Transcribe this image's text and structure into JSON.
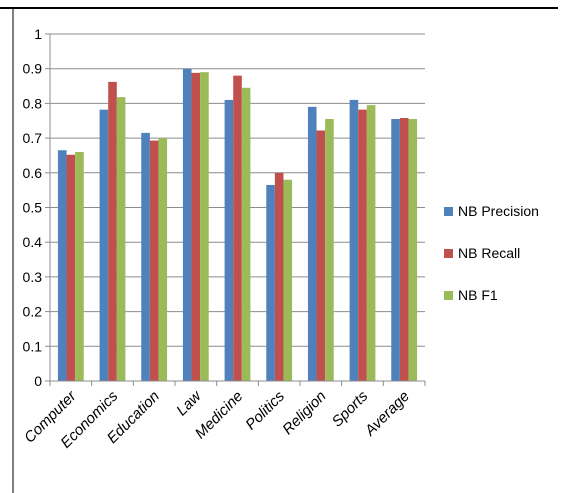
{
  "chart_data": {
    "type": "bar",
    "categories": [
      "Computer",
      "Economics",
      "Education",
      "Law",
      "Medicine",
      "Politics",
      "Religion",
      "Sports",
      "Average"
    ],
    "series": [
      {
        "name": "NB Precision",
        "color": "#4F81BD",
        "values": [
          0.665,
          0.782,
          0.715,
          0.9,
          0.81,
          0.565,
          0.79,
          0.81,
          0.755
        ]
      },
      {
        "name": "NB Recall",
        "color": "#C0504D",
        "values": [
          0.652,
          0.862,
          0.693,
          0.888,
          0.88,
          0.6,
          0.722,
          0.782,
          0.758
        ]
      },
      {
        "name": "NB F1",
        "color": "#9BBB59",
        "values": [
          0.66,
          0.818,
          0.7,
          0.89,
          0.845,
          0.58,
          0.755,
          0.795,
          0.755
        ]
      }
    ],
    "ylim": [
      0,
      1
    ],
    "yticks": [
      "0",
      "0.1",
      "0.2",
      "0.3",
      "0.4",
      "0.5",
      "0.6",
      "0.7",
      "0.8",
      "0.9",
      "1"
    ],
    "grid": true,
    "legend_position": "right",
    "title": "",
    "xlabel": "",
    "ylabel": ""
  }
}
